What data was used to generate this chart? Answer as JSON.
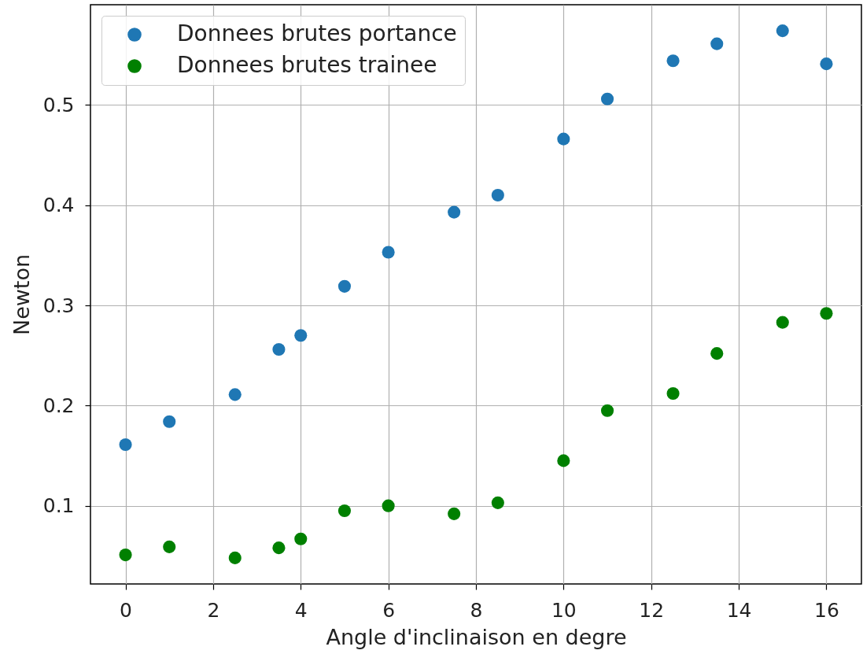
{
  "chart_data": {
    "type": "scatter",
    "xlabel": "Angle d'inclinaison en degre",
    "ylabel": "Newton",
    "x": [
      0,
      1,
      2.5,
      3.5,
      4,
      5,
      6,
      7.5,
      8.5,
      10,
      11,
      12.5,
      13.5,
      15,
      16
    ],
    "series": [
      {
        "name": "Donnees brutes portance",
        "color": "#1f77b4",
        "values": [
          0.161,
          0.184,
          0.211,
          0.256,
          0.27,
          0.319,
          0.353,
          0.393,
          0.41,
          0.466,
          0.506,
          0.544,
          0.561,
          0.574,
          0.541
        ]
      },
      {
        "name": "Donnees brutes trainee",
        "color": "#008000",
        "values": [
          0.051,
          0.059,
          0.048,
          0.058,
          0.067,
          0.095,
          0.1,
          0.092,
          0.103,
          0.145,
          0.195,
          0.212,
          0.252,
          0.283,
          0.292
        ]
      }
    ],
    "xlim": [
      -0.8,
      16.8
    ],
    "xticks": [
      0,
      2,
      4,
      6,
      8,
      10,
      12,
      14,
      16
    ],
    "ylim": [
      0.022,
      0.6
    ],
    "yticks": [
      0.1,
      0.2,
      0.3,
      0.4,
      0.5
    ],
    "grid": true,
    "legend": "top left",
    "marker": "circle"
  }
}
